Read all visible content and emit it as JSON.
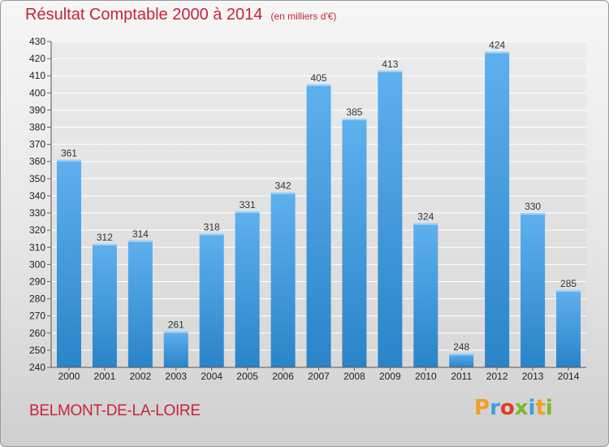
{
  "title": "Résultat Comptable 2000 à 2014",
  "unit_note": "(en milliers d'€)",
  "place": "BELMONT-DE-LA-LOIRE",
  "logo": {
    "letters": [
      "P",
      "r",
      "o",
      "x",
      "i",
      "t",
      "i"
    ],
    "colors": [
      "#f0a020",
      "#3aa0dc",
      "#e23a2a",
      "#7cba2a",
      "#3aa0dc",
      "#f0a020",
      "#7cba2a"
    ]
  },
  "colors": {
    "accent_text": "#c8243a",
    "bar_light": "#5fb0ee",
    "bar_dark": "#2a84c8"
  },
  "chart_data": {
    "type": "bar",
    "title": "Résultat Comptable 2000 à 2014",
    "categories": [
      "2000",
      "2001",
      "2002",
      "2003",
      "2004",
      "2005",
      "2006",
      "2007",
      "2008",
      "2009",
      "2010",
      "2011",
      "2012",
      "2013",
      "2014"
    ],
    "values": [
      361,
      312,
      314,
      261,
      318,
      331,
      342,
      405,
      385,
      413,
      324,
      248,
      424,
      330,
      285
    ],
    "ylim": [
      240,
      430
    ],
    "yticks": [
      240,
      250,
      260,
      270,
      280,
      290,
      300,
      310,
      320,
      330,
      340,
      350,
      360,
      370,
      380,
      390,
      400,
      410,
      420,
      430
    ],
    "grid": true,
    "data_labels": true
  }
}
